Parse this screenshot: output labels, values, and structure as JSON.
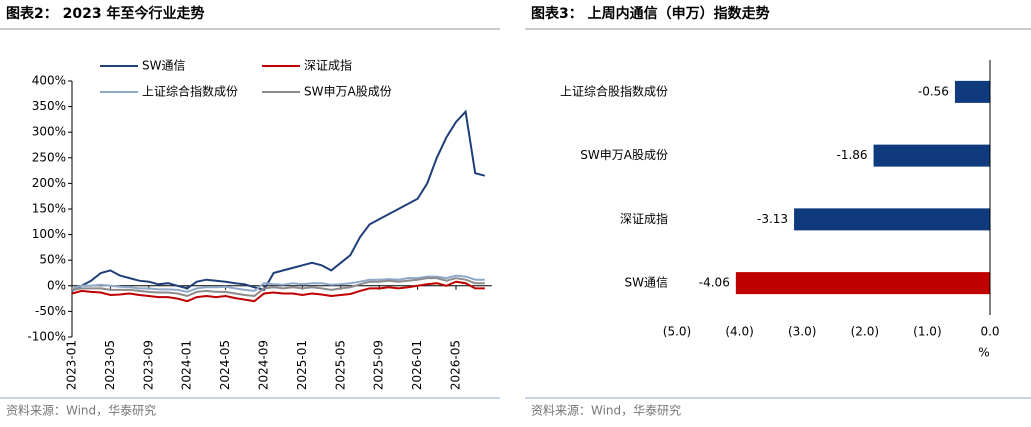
{
  "chart_data": [
    {
      "type": "line",
      "title": "图表2： 2023 年至今行业走势",
      "source": "资料来源：Wind，华泰研究",
      "x": [
        "2023-01",
        "2023-02",
        "2023-03",
        "2023-04",
        "2023-05",
        "2023-06",
        "2023-07",
        "2023-08",
        "2023-09",
        "2023-10",
        "2023-11",
        "2023-12",
        "2024-01",
        "2024-02",
        "2024-03",
        "2024-04",
        "2024-05",
        "2024-06",
        "2024-07",
        "2024-08",
        "2024-09",
        "2024-10",
        "2024-11",
        "2024-12",
        "2025-01",
        "2025-02",
        "2025-03",
        "2025-04",
        "2025-05",
        "2025-06",
        "2025-07",
        "2025-08",
        "2025-09",
        "2025-10",
        "2025-11",
        "2025-12",
        "2026-01",
        "2026-02",
        "2026-03",
        "2026-04",
        "2026-05",
        "2026-06",
        "2026-07",
        "2026-08"
      ],
      "xticks": [
        "2023-01",
        "2023-05",
        "2023-09",
        "2024-01",
        "2024-05",
        "2024-09",
        "2025-01",
        "2025-05",
        "2025-09",
        "2026-01",
        "2026-05"
      ],
      "ylim": [
        -100,
        400
      ],
      "yticks": [
        {
          "value": -100,
          "label": "-100%"
        },
        {
          "value": -50,
          "label": "-50%"
        },
        {
          "value": 0,
          "label": "0%"
        },
        {
          "value": 50,
          "label": "50%"
        },
        {
          "value": 100,
          "label": "100%"
        },
        {
          "value": 150,
          "label": "150%"
        },
        {
          "value": 200,
          "label": "200%"
        },
        {
          "value": 250,
          "label": "250%"
        },
        {
          "value": 300,
          "label": "300%"
        },
        {
          "value": 350,
          "label": "350%"
        },
        {
          "value": 400,
          "label": "400%"
        }
      ],
      "series": [
        {
          "name": "SW通信",
          "color": "#1f3f7a",
          "values": [
            -10,
            0,
            10,
            25,
            30,
            20,
            15,
            10,
            8,
            3,
            5,
            0,
            -5,
            8,
            12,
            10,
            8,
            5,
            3,
            -3,
            -8,
            25,
            30,
            35,
            40,
            45,
            40,
            30,
            45,
            60,
            95,
            120,
            130,
            140,
            150,
            160,
            170,
            200,
            250,
            290,
            320,
            340,
            220,
            215
          ]
        },
        {
          "name": "深证成指",
          "color": "#c00000",
          "values": [
            -15,
            -10,
            -12,
            -13,
            -18,
            -17,
            -15,
            -18,
            -20,
            -22,
            -22,
            -25,
            -30,
            -22,
            -20,
            -22,
            -20,
            -24,
            -27,
            -30,
            -15,
            -13,
            -15,
            -15,
            -18,
            -15,
            -17,
            -20,
            -18,
            -16,
            -10,
            -5,
            -5,
            -3,
            -5,
            -3,
            0,
            3,
            5,
            0,
            8,
            5,
            -5,
            -5
          ]
        },
        {
          "name": "上证综合指数成份",
          "color": "#8ea9c8",
          "values": [
            -5,
            0,
            0,
            2,
            0,
            -2,
            -3,
            -5,
            -5,
            -7,
            -7,
            -8,
            -12,
            -5,
            -3,
            -3,
            -2,
            -5,
            -8,
            -10,
            5,
            3,
            2,
            5,
            3,
            5,
            5,
            2,
            3,
            5,
            8,
            12,
            12,
            13,
            12,
            15,
            15,
            18,
            18,
            15,
            20,
            18,
            12,
            12
          ]
        },
        {
          "name": "SW申万A股成份",
          "color": "#8c8c8c",
          "values": [
            -8,
            -5,
            -5,
            -5,
            -8,
            -8,
            -8,
            -10,
            -12,
            -13,
            -13,
            -15,
            -20,
            -12,
            -10,
            -12,
            -12,
            -15,
            -18,
            -20,
            -5,
            -3,
            -5,
            -3,
            -5,
            -3,
            -5,
            -8,
            -5,
            -3,
            3,
            8,
            8,
            10,
            8,
            10,
            12,
            15,
            15,
            10,
            15,
            12,
            5,
            5
          ]
        }
      ]
    },
    {
      "type": "hbar",
      "title": "图表3： 上周内通信（申万）指数走势",
      "source": "资料来源：Wind，华泰研究",
      "categories": [
        "上证综合股指数成份",
        "SW申万A股成份",
        "深证成指",
        "SW通信"
      ],
      "values": [
        -0.56,
        -1.86,
        -3.13,
        -4.06
      ],
      "colors": [
        "#0f3a7d",
        "#0f3a7d",
        "#0f3a7d",
        "#c00000"
      ],
      "xlim": [
        -5,
        0
      ],
      "xticks": [
        {
          "value": -5,
          "label": "(5.0)"
        },
        {
          "value": -4,
          "label": "(4.0)"
        },
        {
          "value": -3,
          "label": "(3.0)"
        },
        {
          "value": -2,
          "label": "(2.0)"
        },
        {
          "value": -1,
          "label": "(1.0)"
        },
        {
          "value": 0,
          "label": "0.0"
        }
      ],
      "xlabel": "%"
    }
  ]
}
